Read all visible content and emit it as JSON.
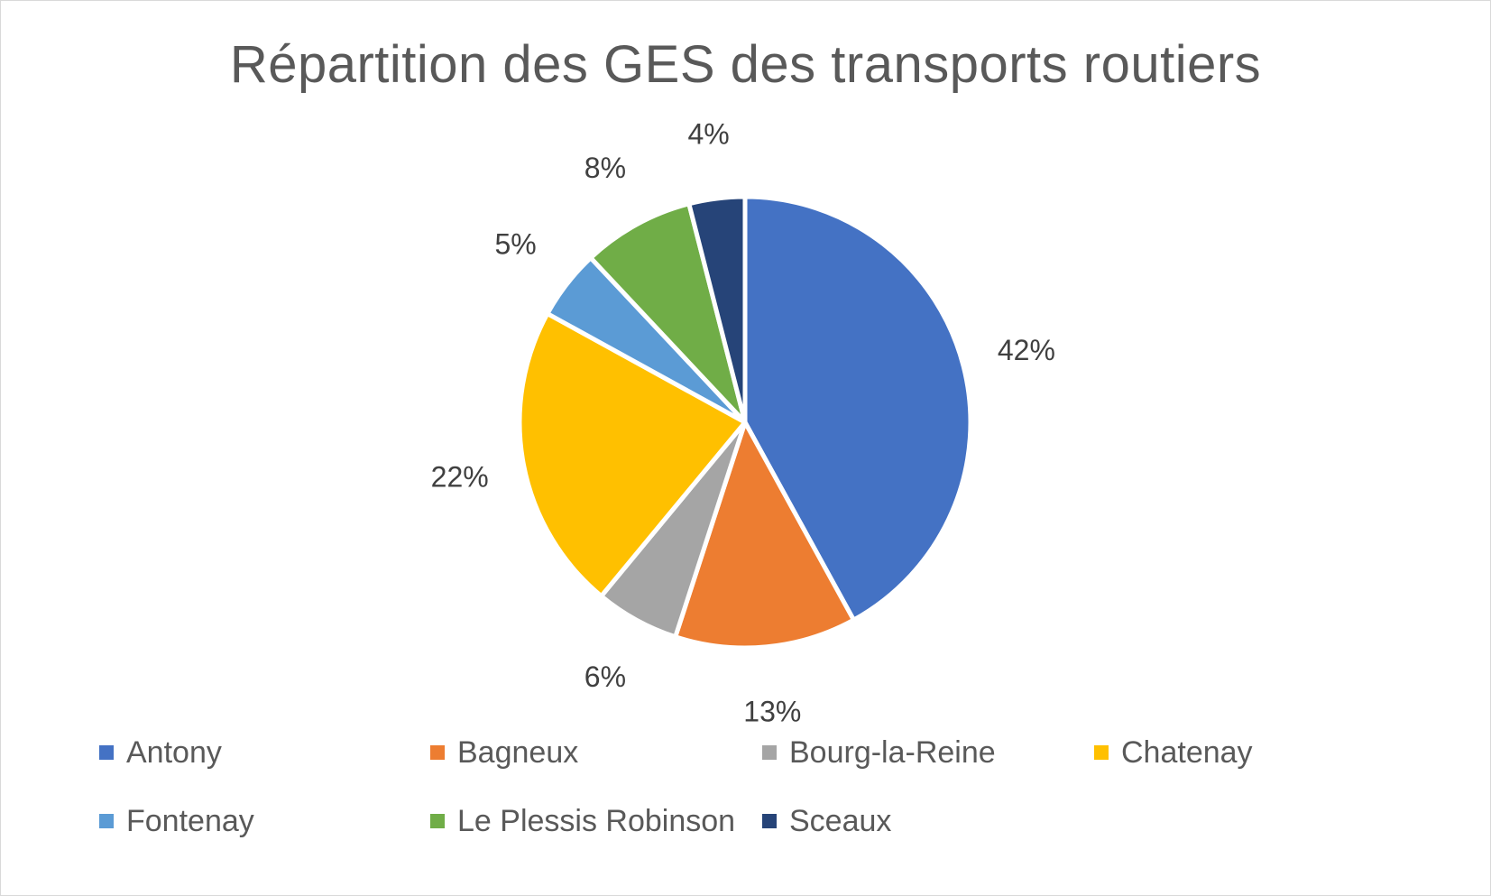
{
  "chart_data": {
    "type": "pie",
    "title": "Répartition des GES des transports routiers",
    "categories": [
      "Antony",
      "Bagneux",
      "Bourg-la-Reine",
      "Chatenay",
      "Fontenay",
      "Le Plessis Robinson",
      "Sceaux"
    ],
    "values": [
      42,
      13,
      6,
      22,
      5,
      8,
      4
    ],
    "labels": [
      "42%",
      "13%",
      "6%",
      "22%",
      "5%",
      "8%",
      "4%"
    ],
    "colors": [
      "#4472C4",
      "#ED7D31",
      "#A5A5A5",
      "#FFC000",
      "#5B9BD5",
      "#70AD47",
      "#264478"
    ],
    "legend_position": "bottom",
    "start_angle": "12 o'clock",
    "direction": "clockwise"
  }
}
